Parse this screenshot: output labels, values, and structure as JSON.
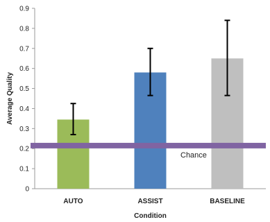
{
  "chart_data": {
    "type": "bar",
    "title": "",
    "xlabel": "Condition",
    "ylabel": "Average Quality",
    "categories": [
      "AUTO",
      "ASSIST",
      "BASELINE"
    ],
    "values": [
      0.345,
      0.58,
      0.65
    ],
    "error_low": [
      0.27,
      0.465,
      0.465
    ],
    "error_high": [
      0.425,
      0.7,
      0.84
    ],
    "colors": [
      "#9bbb59",
      "#4f81bd",
      "#bfbfbf"
    ],
    "ylim": [
      0,
      0.9
    ],
    "yticks": [
      "0",
      "0.1",
      "0.2",
      "0.3",
      "0.4",
      "0.5",
      "0.6",
      "0.7",
      "0.8",
      "0.9"
    ],
    "grid": false,
    "reference_line": {
      "value": 0.215,
      "label": "Chance",
      "color": "#8064a2"
    }
  }
}
